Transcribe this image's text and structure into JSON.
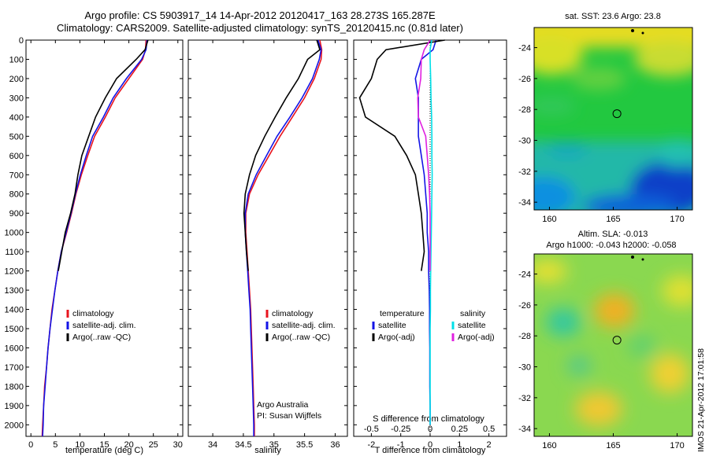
{
  "titles": {
    "line1": "Argo profile: CS 5903917_14 14-Apr-2012 20120417_163 28.273S 165.287E",
    "line2": "Climatology: CARS2009. Satellite-adjusted climatology: synTS_20120415.nc (0.81d later)"
  },
  "colors": {
    "climatology": "#e8141e",
    "satellite": "#1414e6",
    "argo": "#000000",
    "sal_sat": "#00e0e8",
    "sal_argo": "#e020e0"
  },
  "chart_data": [
    {
      "type": "line",
      "xlabel": "temperature (deg C)",
      "xlim": [
        -1,
        31
      ],
      "xticks": [
        0,
        5,
        10,
        15,
        20,
        25,
        30
      ],
      "ylim": [
        2060,
        0
      ],
      "yticks": [
        0,
        100,
        200,
        300,
        400,
        500,
        600,
        700,
        800,
        900,
        1000,
        1100,
        1200,
        1300,
        1400,
        1500,
        1600,
        1700,
        1800,
        1900,
        2000
      ],
      "legend": [
        "climatology",
        "satellite-adj. clim.",
        "Argo(..raw -QC)"
      ],
      "series": [
        {
          "name": "climatology",
          "color": "#e8141e",
          "x": [
            23.5,
            23.4,
            22.8,
            20.0,
            17.2,
            15.2,
            13.0,
            11.6,
            10.3,
            9.2,
            8.3,
            7.3,
            6.2,
            5.5,
            4.9,
            4.3,
            3.9,
            3.5,
            3.2,
            2.8,
            2.6,
            2.4,
            2.3
          ],
          "y": [
            0,
            50,
            100,
            200,
            300,
            400,
            500,
            600,
            700,
            800,
            900,
            1000,
            1100,
            1200,
            1300,
            1400,
            1500,
            1600,
            1700,
            1800,
            1900,
            2000,
            2060
          ]
        },
        {
          "name": "satellite-adj. clim.",
          "color": "#1414e6",
          "x": [
            23.7,
            23.5,
            22.6,
            19.5,
            16.8,
            14.8,
            12.6,
            11.3,
            10.1,
            9.1,
            8.2,
            7.2,
            6.2,
            5.5,
            4.9,
            4.4,
            3.9,
            3.5,
            3.2,
            2.9,
            2.6,
            2.5,
            2.4
          ],
          "y": [
            0,
            50,
            100,
            200,
            300,
            400,
            500,
            600,
            700,
            800,
            900,
            1000,
            1100,
            1200,
            1300,
            1400,
            1500,
            1600,
            1700,
            1800,
            1900,
            2000,
            2060
          ]
        },
        {
          "name": "Argo(..raw -QC)",
          "color": "#000000",
          "x": [
            23.9,
            23.3,
            21.5,
            17.5,
            15.2,
            13.2,
            11.8,
            10.4,
            9.6,
            9.0,
            8.1,
            7.0,
            6.3,
            5.6
          ],
          "y": [
            0,
            50,
            100,
            200,
            300,
            400,
            500,
            600,
            700,
            800,
            900,
            1000,
            1100,
            1200
          ]
        }
      ]
    },
    {
      "type": "line",
      "xlabel": "salinity",
      "xlim": [
        33.6,
        36.2
      ],
      "xticks": [
        34,
        34.5,
        35,
        35.5,
        36
      ],
      "ylim": [
        2060,
        0
      ],
      "legend": [
        "climatology",
        "satellite-adj. clim.",
        "Argo(..raw -QC)"
      ],
      "annotation": [
        "Argo Australia",
        "PI: Susan Wijffels"
      ],
      "series": [
        {
          "name": "climatology",
          "color": "#e8141e",
          "x": [
            35.75,
            35.78,
            35.77,
            35.66,
            35.5,
            35.3,
            35.1,
            34.92,
            34.74,
            34.6,
            34.54,
            34.54,
            34.56,
            34.58,
            34.6,
            34.62,
            34.63,
            34.64,
            34.65,
            34.66,
            34.67,
            34.68,
            34.68
          ],
          "y": [
            0,
            50,
            100,
            200,
            300,
            400,
            500,
            600,
            700,
            800,
            900,
            1000,
            1100,
            1200,
            1300,
            1400,
            1500,
            1600,
            1700,
            1800,
            1900,
            2000,
            2060
          ]
        },
        {
          "name": "satellite-adj. clim.",
          "color": "#1414e6",
          "x": [
            35.72,
            35.77,
            35.74,
            35.63,
            35.46,
            35.26,
            35.05,
            34.88,
            34.71,
            34.58,
            34.53,
            34.53,
            34.55,
            34.57,
            34.59,
            34.61,
            34.62,
            34.63,
            34.64,
            34.65,
            34.66,
            34.67,
            34.67
          ],
          "y": [
            0,
            50,
            100,
            200,
            300,
            400,
            500,
            600,
            700,
            800,
            900,
            1000,
            1100,
            1200,
            1300,
            1400,
            1500,
            1600,
            1700,
            1800,
            1900,
            2000,
            2060
          ]
        },
        {
          "name": "Argo(..raw -QC)",
          "color": "#000000",
          "x": [
            35.7,
            35.75,
            35.55,
            35.4,
            35.2,
            35.02,
            34.85,
            34.7,
            34.6,
            34.53,
            34.51,
            34.53,
            34.55,
            34.58
          ],
          "y": [
            0,
            50,
            100,
            200,
            300,
            400,
            500,
            600,
            700,
            800,
            900,
            1000,
            1100,
            1200
          ]
        }
      ]
    },
    {
      "type": "line",
      "xlabel": "T difference from climatology",
      "xlabel_top": "S difference from climatology",
      "xlim": [
        -2.6,
        2.6
      ],
      "xticks": [
        -2,
        -1,
        0,
        1,
        2
      ],
      "xticks_top": [
        -0.5,
        -0.25,
        0,
        0.25,
        0.5
      ],
      "ylim": [
        2060,
        0
      ],
      "legend_left": {
        "header": "temperature",
        "items": [
          "satellite",
          "Argo(-adj)"
        ]
      },
      "legend_right": {
        "header": "salinity",
        "items": [
          "satellite",
          "Argo(-adj)"
        ]
      },
      "series": [
        {
          "name": "temperature satellite",
          "color": "#1414e6",
          "x": [
            0.2,
            0.1,
            -0.3,
            -0.5,
            -0.4,
            -0.4,
            -0.4,
            -0.3,
            -0.2,
            -0.15,
            -0.1,
            -0.1,
            -0.05,
            -0.05,
            -0.03,
            -0.02,
            -0.02,
            -0.01,
            -0.01,
            -0.01,
            0,
            0
          ],
          "y": [
            0,
            50,
            100,
            200,
            300,
            400,
            500,
            600,
            700,
            800,
            900,
            1000,
            1100,
            1200,
            1300,
            1400,
            1500,
            1600,
            1700,
            1800,
            1900,
            2000
          ]
        },
        {
          "name": "temperature Argo(-adj)",
          "color": "#000000",
          "x": [
            0.5,
            -1.5,
            -1.8,
            -2.0,
            -2.4,
            -2.2,
            -1.2,
            -0.8,
            -0.5,
            -0.4,
            -0.3,
            -0.25,
            -0.2,
            -0.3
          ],
          "y": [
            0,
            50,
            100,
            200,
            300,
            400,
            500,
            600,
            700,
            800,
            900,
            1000,
            1100,
            1200
          ]
        },
        {
          "name": "salinity satellite",
          "color": "#00e0e8",
          "x": [
            0.05,
            0.0,
            0.0,
            0.02,
            0.03,
            0.05,
            0.06,
            0.06,
            0.07,
            0.06,
            0.05,
            0.04,
            0.03,
            0.02,
            0.01,
            0.01,
            0,
            0,
            0,
            0,
            0,
            0
          ],
          "y": [
            0,
            50,
            100,
            200,
            300,
            400,
            500,
            600,
            700,
            800,
            900,
            1000,
            1100,
            1200,
            1300,
            1400,
            1500,
            1600,
            1700,
            1800,
            1900,
            2000
          ]
        },
        {
          "name": "salinity Argo(-adj)",
          "color": "#e020e0",
          "x": [
            0.0,
            -0.2,
            -0.3,
            -0.32,
            -0.42,
            -0.4,
            -0.15,
            -0.1,
            -0.05,
            -0.02,
            0.0,
            0.0,
            0.0,
            0.0
          ],
          "y": [
            0,
            50,
            100,
            200,
            300,
            400,
            500,
            600,
            700,
            800,
            900,
            1000,
            1100,
            1200
          ]
        }
      ]
    },
    {
      "type": "heatmap",
      "title": "sat. SST: 23.6  Argo: 23.8",
      "xticks": [
        160,
        165,
        170
      ],
      "yticks": [
        -24,
        -26,
        -28,
        -30,
        -32,
        -34
      ],
      "xlim": [
        158.8,
        171.2
      ],
      "ylim": [
        -34.5,
        -22.7
      ],
      "marker": {
        "lon": 165.287,
        "lat": -28.273
      }
    },
    {
      "type": "heatmap",
      "title": "Altim. SLA: -0.013",
      "subtitle": "Argo h1000: -0.043  h2000: -0.058",
      "xticks": [
        160,
        165,
        170
      ],
      "yticks": [
        -24,
        -26,
        -28,
        -30,
        -32,
        -34
      ],
      "xlim": [
        158.8,
        171.2
      ],
      "ylim": [
        -34.5,
        -22.7
      ],
      "marker": {
        "lon": 165.287,
        "lat": -28.273
      }
    }
  ],
  "footer": "IMOS 21-Apr-2012 17:01:58"
}
